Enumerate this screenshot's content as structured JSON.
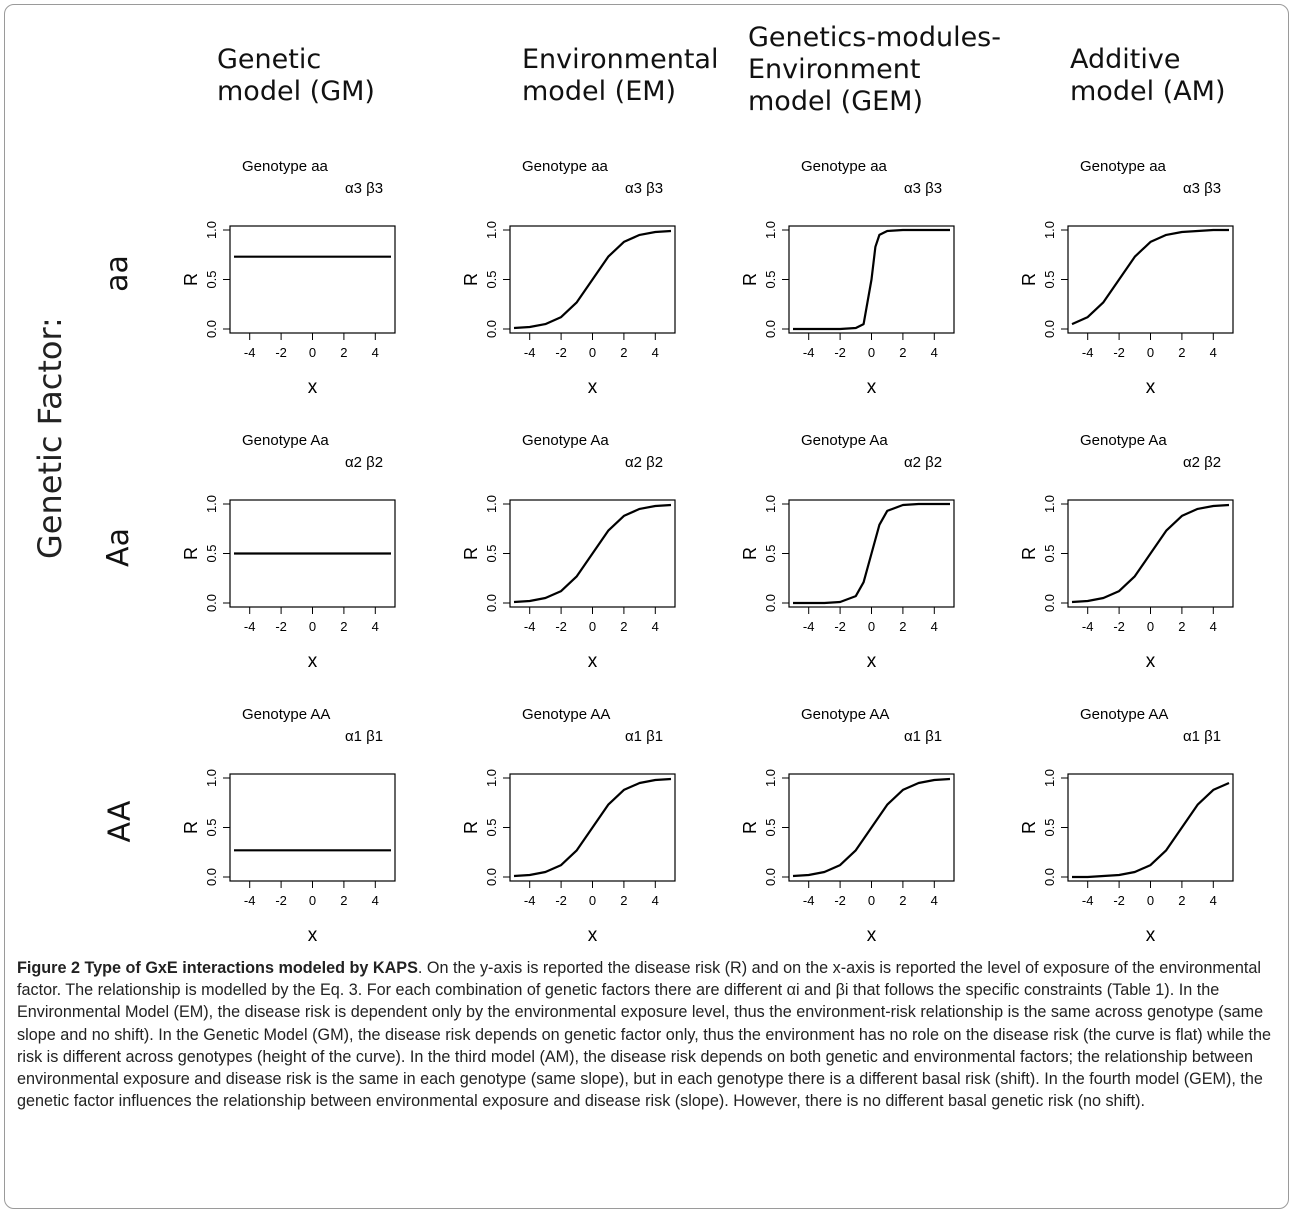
{
  "column_titles": [
    "Genetic\nmodel (GM)",
    "Environmental\nmodel (EM)",
    "Genetics-modules-\nEnvironment\nmodel (GEM)",
    "Additive\nmodel (AM)"
  ],
  "factor_label": "Genetic Factor:",
  "row_labels": [
    "aa",
    "Aa",
    "AA"
  ],
  "caption": {
    "title": "Figure 2 Type of GxE interactions modeled by KAPS",
    "text": ". On the y-axis is reported the disease risk (R) and on the x-axis is reported the level of exposure of the environmental factor. The relationship is modelled by the Eq. 3. For each combination of genetic factors there are different αi and βi that follows the specific constraints (Table 1). In the Environmental Model (EM), the disease risk is dependent only by the environmental exposure level, thus the environment-risk relationship is the same across genotype (same slope and no shift). In the Genetic Model (GM), the disease risk depends on genetic factor only, thus the environment has no role on the disease risk (the curve is flat) while the risk is different across genotypes (height of the curve). In the third model (AM), the disease risk depends on both genetic and environmental factors; the relationship between environmental exposure and disease risk is the same in each genotype (same slope), but in each genotype there is a different basal risk (shift). In the fourth model (GEM), the genetic factor influences the relationship between environmental exposure and disease risk (slope). However, there is no different basal genetic risk (no shift)."
  },
  "chart_data": [
    {
      "type": "line",
      "model": "GM",
      "title": "Genotype aa",
      "params": "α3 β3",
      "xlabel": "x",
      "ylabel": "R",
      "xlim": [
        -5,
        5
      ],
      "ylim": [
        0,
        1
      ],
      "xticks": [
        "-4",
        "-2",
        "0",
        "2",
        "4"
      ],
      "yticks": [
        "0.0",
        "0.5",
        "1.0"
      ],
      "x": [
        -5,
        5
      ],
      "y": [
        0.73,
        0.73
      ]
    },
    {
      "type": "line",
      "model": "EM",
      "title": "Genotype aa",
      "params": "α3 β3",
      "xlabel": "x",
      "ylabel": "R",
      "xlim": [
        -5,
        5
      ],
      "ylim": [
        0,
        1
      ],
      "xticks": [
        "-4",
        "-2",
        "0",
        "2",
        "4"
      ],
      "yticks": [
        "0.0",
        "0.5",
        "1.0"
      ],
      "x": [
        -5,
        -4,
        -3,
        -2,
        -1,
        0,
        1,
        2,
        3,
        4,
        5
      ],
      "y": [
        0.01,
        0.02,
        0.05,
        0.12,
        0.27,
        0.5,
        0.73,
        0.88,
        0.95,
        0.98,
        0.99
      ]
    },
    {
      "type": "line",
      "model": "GEM",
      "title": "Genotype aa",
      "params": "α3 β3",
      "xlabel": "x",
      "ylabel": "R",
      "xlim": [
        -5,
        5
      ],
      "ylim": [
        0,
        1
      ],
      "xticks": [
        "-4",
        "-2",
        "0",
        "2",
        "4"
      ],
      "yticks": [
        "0.0",
        "0.5",
        "1.0"
      ],
      "x": [
        -5,
        -2,
        -1,
        -0.5,
        0,
        0.25,
        0.5,
        1,
        2,
        5
      ],
      "y": [
        0,
        0,
        0.01,
        0.05,
        0.5,
        0.83,
        0.95,
        0.99,
        1,
        1
      ]
    },
    {
      "type": "line",
      "model": "AM",
      "title": "Genotype aa",
      "params": "α3 β3",
      "xlabel": "x",
      "ylabel": "R",
      "xlim": [
        -5,
        5
      ],
      "ylim": [
        0,
        1
      ],
      "xticks": [
        "-4",
        "-2",
        "0",
        "2",
        "4"
      ],
      "yticks": [
        "0.0",
        "0.5",
        "1.0"
      ],
      "x": [
        -5,
        -4,
        -3,
        -2,
        -1,
        0,
        1,
        2,
        3,
        4,
        5
      ],
      "y": [
        0.05,
        0.12,
        0.27,
        0.5,
        0.73,
        0.88,
        0.95,
        0.98,
        0.99,
        1,
        1
      ]
    },
    {
      "type": "line",
      "model": "GM",
      "title": "Genotype Aa",
      "params": "α2 β2",
      "xlabel": "x",
      "ylabel": "R",
      "xlim": [
        -5,
        5
      ],
      "ylim": [
        0,
        1
      ],
      "xticks": [
        "-4",
        "-2",
        "0",
        "2",
        "4"
      ],
      "yticks": [
        "0.0",
        "0.5",
        "1.0"
      ],
      "x": [
        -5,
        5
      ],
      "y": [
        0.5,
        0.5
      ]
    },
    {
      "type": "line",
      "model": "EM",
      "title": "Genotype Aa",
      "params": "α2 β2",
      "xlabel": "x",
      "ylabel": "R",
      "xlim": [
        -5,
        5
      ],
      "ylim": [
        0,
        1
      ],
      "xticks": [
        "-4",
        "-2",
        "0",
        "2",
        "4"
      ],
      "yticks": [
        "0.0",
        "0.5",
        "1.0"
      ],
      "x": [
        -5,
        -4,
        -3,
        -2,
        -1,
        0,
        1,
        2,
        3,
        4,
        5
      ],
      "y": [
        0.01,
        0.02,
        0.05,
        0.12,
        0.27,
        0.5,
        0.73,
        0.88,
        0.95,
        0.98,
        0.99
      ]
    },
    {
      "type": "line",
      "model": "GEM",
      "title": "Genotype Aa",
      "params": "α2 β2",
      "xlabel": "x",
      "ylabel": "R",
      "xlim": [
        -5,
        5
      ],
      "ylim": [
        0,
        1
      ],
      "xticks": [
        "-4",
        "-2",
        "0",
        "2",
        "4"
      ],
      "yticks": [
        "0.0",
        "0.5",
        "1.0"
      ],
      "x": [
        -5,
        -3,
        -2,
        -1,
        -0.5,
        0,
        0.5,
        1,
        2,
        3,
        5
      ],
      "y": [
        0,
        0,
        0.01,
        0.07,
        0.21,
        0.5,
        0.79,
        0.93,
        0.99,
        1,
        1
      ]
    },
    {
      "type": "line",
      "model": "AM",
      "title": "Genotype Aa",
      "params": "α2 β2",
      "xlabel": "x",
      "ylabel": "R",
      "xlim": [
        -5,
        5
      ],
      "ylim": [
        0,
        1
      ],
      "xticks": [
        "-4",
        "-2",
        "0",
        "2",
        "4"
      ],
      "yticks": [
        "0.0",
        "0.5",
        "1.0"
      ],
      "x": [
        -5,
        -4,
        -3,
        -2,
        -1,
        0,
        1,
        2,
        3,
        4,
        5
      ],
      "y": [
        0.01,
        0.02,
        0.05,
        0.12,
        0.27,
        0.5,
        0.73,
        0.88,
        0.95,
        0.98,
        0.99
      ]
    },
    {
      "type": "line",
      "model": "GM",
      "title": "Genotype AA",
      "params": "α1 β1",
      "xlabel": "x",
      "ylabel": "R",
      "xlim": [
        -5,
        5
      ],
      "ylim": [
        0,
        1
      ],
      "xticks": [
        "-4",
        "-2",
        "0",
        "2",
        "4"
      ],
      "yticks": [
        "0.0",
        "0.5",
        "1.0"
      ],
      "x": [
        -5,
        5
      ],
      "y": [
        0.27,
        0.27
      ]
    },
    {
      "type": "line",
      "model": "EM",
      "title": "Genotype AA",
      "params": "α1 β1",
      "xlabel": "x",
      "ylabel": "R",
      "xlim": [
        -5,
        5
      ],
      "ylim": [
        0,
        1
      ],
      "xticks": [
        "-4",
        "-2",
        "0",
        "2",
        "4"
      ],
      "yticks": [
        "0.0",
        "0.5",
        "1.0"
      ],
      "x": [
        -5,
        -4,
        -3,
        -2,
        -1,
        0,
        1,
        2,
        3,
        4,
        5
      ],
      "y": [
        0.01,
        0.02,
        0.05,
        0.12,
        0.27,
        0.5,
        0.73,
        0.88,
        0.95,
        0.98,
        0.99
      ]
    },
    {
      "type": "line",
      "model": "GEM",
      "title": "Genotype AA",
      "params": "α1 β1",
      "xlabel": "x",
      "ylabel": "R",
      "xlim": [
        -5,
        5
      ],
      "ylim": [
        0,
        1
      ],
      "xticks": [
        "-4",
        "-2",
        "0",
        "2",
        "4"
      ],
      "yticks": [
        "0.0",
        "0.5",
        "1.0"
      ],
      "x": [
        -5,
        -4,
        -3,
        -2,
        -1,
        0,
        1,
        2,
        3,
        4,
        5
      ],
      "y": [
        0.01,
        0.02,
        0.05,
        0.12,
        0.27,
        0.5,
        0.73,
        0.88,
        0.95,
        0.98,
        0.99
      ]
    },
    {
      "type": "line",
      "model": "AM",
      "title": "Genotype AA",
      "params": "α1 β1",
      "xlabel": "x",
      "ylabel": "R",
      "xlim": [
        -5,
        5
      ],
      "ylim": [
        0,
        1
      ],
      "xticks": [
        "-4",
        "-2",
        "0",
        "2",
        "4"
      ],
      "yticks": [
        "0.0",
        "0.5",
        "1.0"
      ],
      "x": [
        -5,
        -4,
        -3,
        -2,
        -1,
        0,
        1,
        2,
        3,
        4,
        5
      ],
      "y": [
        0,
        0,
        0.01,
        0.02,
        0.05,
        0.12,
        0.27,
        0.5,
        0.73,
        0.88,
        0.95
      ]
    }
  ]
}
